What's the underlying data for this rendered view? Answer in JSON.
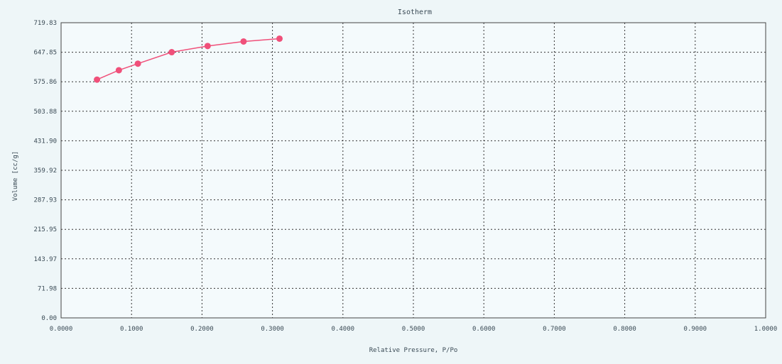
{
  "chart_data": {
    "type": "scatter",
    "title": "Isotherm",
    "xlabel": "Relative Pressure, P/Po",
    "ylabel": "Volume [cc/g]",
    "xlim": [
      0.0,
      1.0
    ],
    "ylim": [
      0.0,
      719.83
    ],
    "x_ticks": [
      "0.0000",
      "0.1000",
      "0.2000",
      "0.3000",
      "0.4000",
      "0.5000",
      "0.6000",
      "0.7000",
      "0.8000",
      "0.9000",
      "1.0000"
    ],
    "y_ticks": [
      "0.00",
      "71.98",
      "143.97",
      "215.95",
      "287.93",
      "359.92",
      "431.90",
      "503.88",
      "575.86",
      "647.85",
      "719.83"
    ],
    "grid": true,
    "series": [
      {
        "x": [
          0.051,
          0.082,
          0.109,
          0.157,
          0.208,
          0.259,
          0.31
        ],
        "y": [
          581,
          604,
          620,
          648,
          663,
          674,
          681
        ],
        "color": "#f0507a",
        "marker": "circle",
        "connected": true
      }
    ],
    "colors": {
      "background": "#eef6f8",
      "plot_background": "#f4fafc",
      "grid": "#333333",
      "axis": "#444444",
      "series": "#f0507a"
    }
  }
}
